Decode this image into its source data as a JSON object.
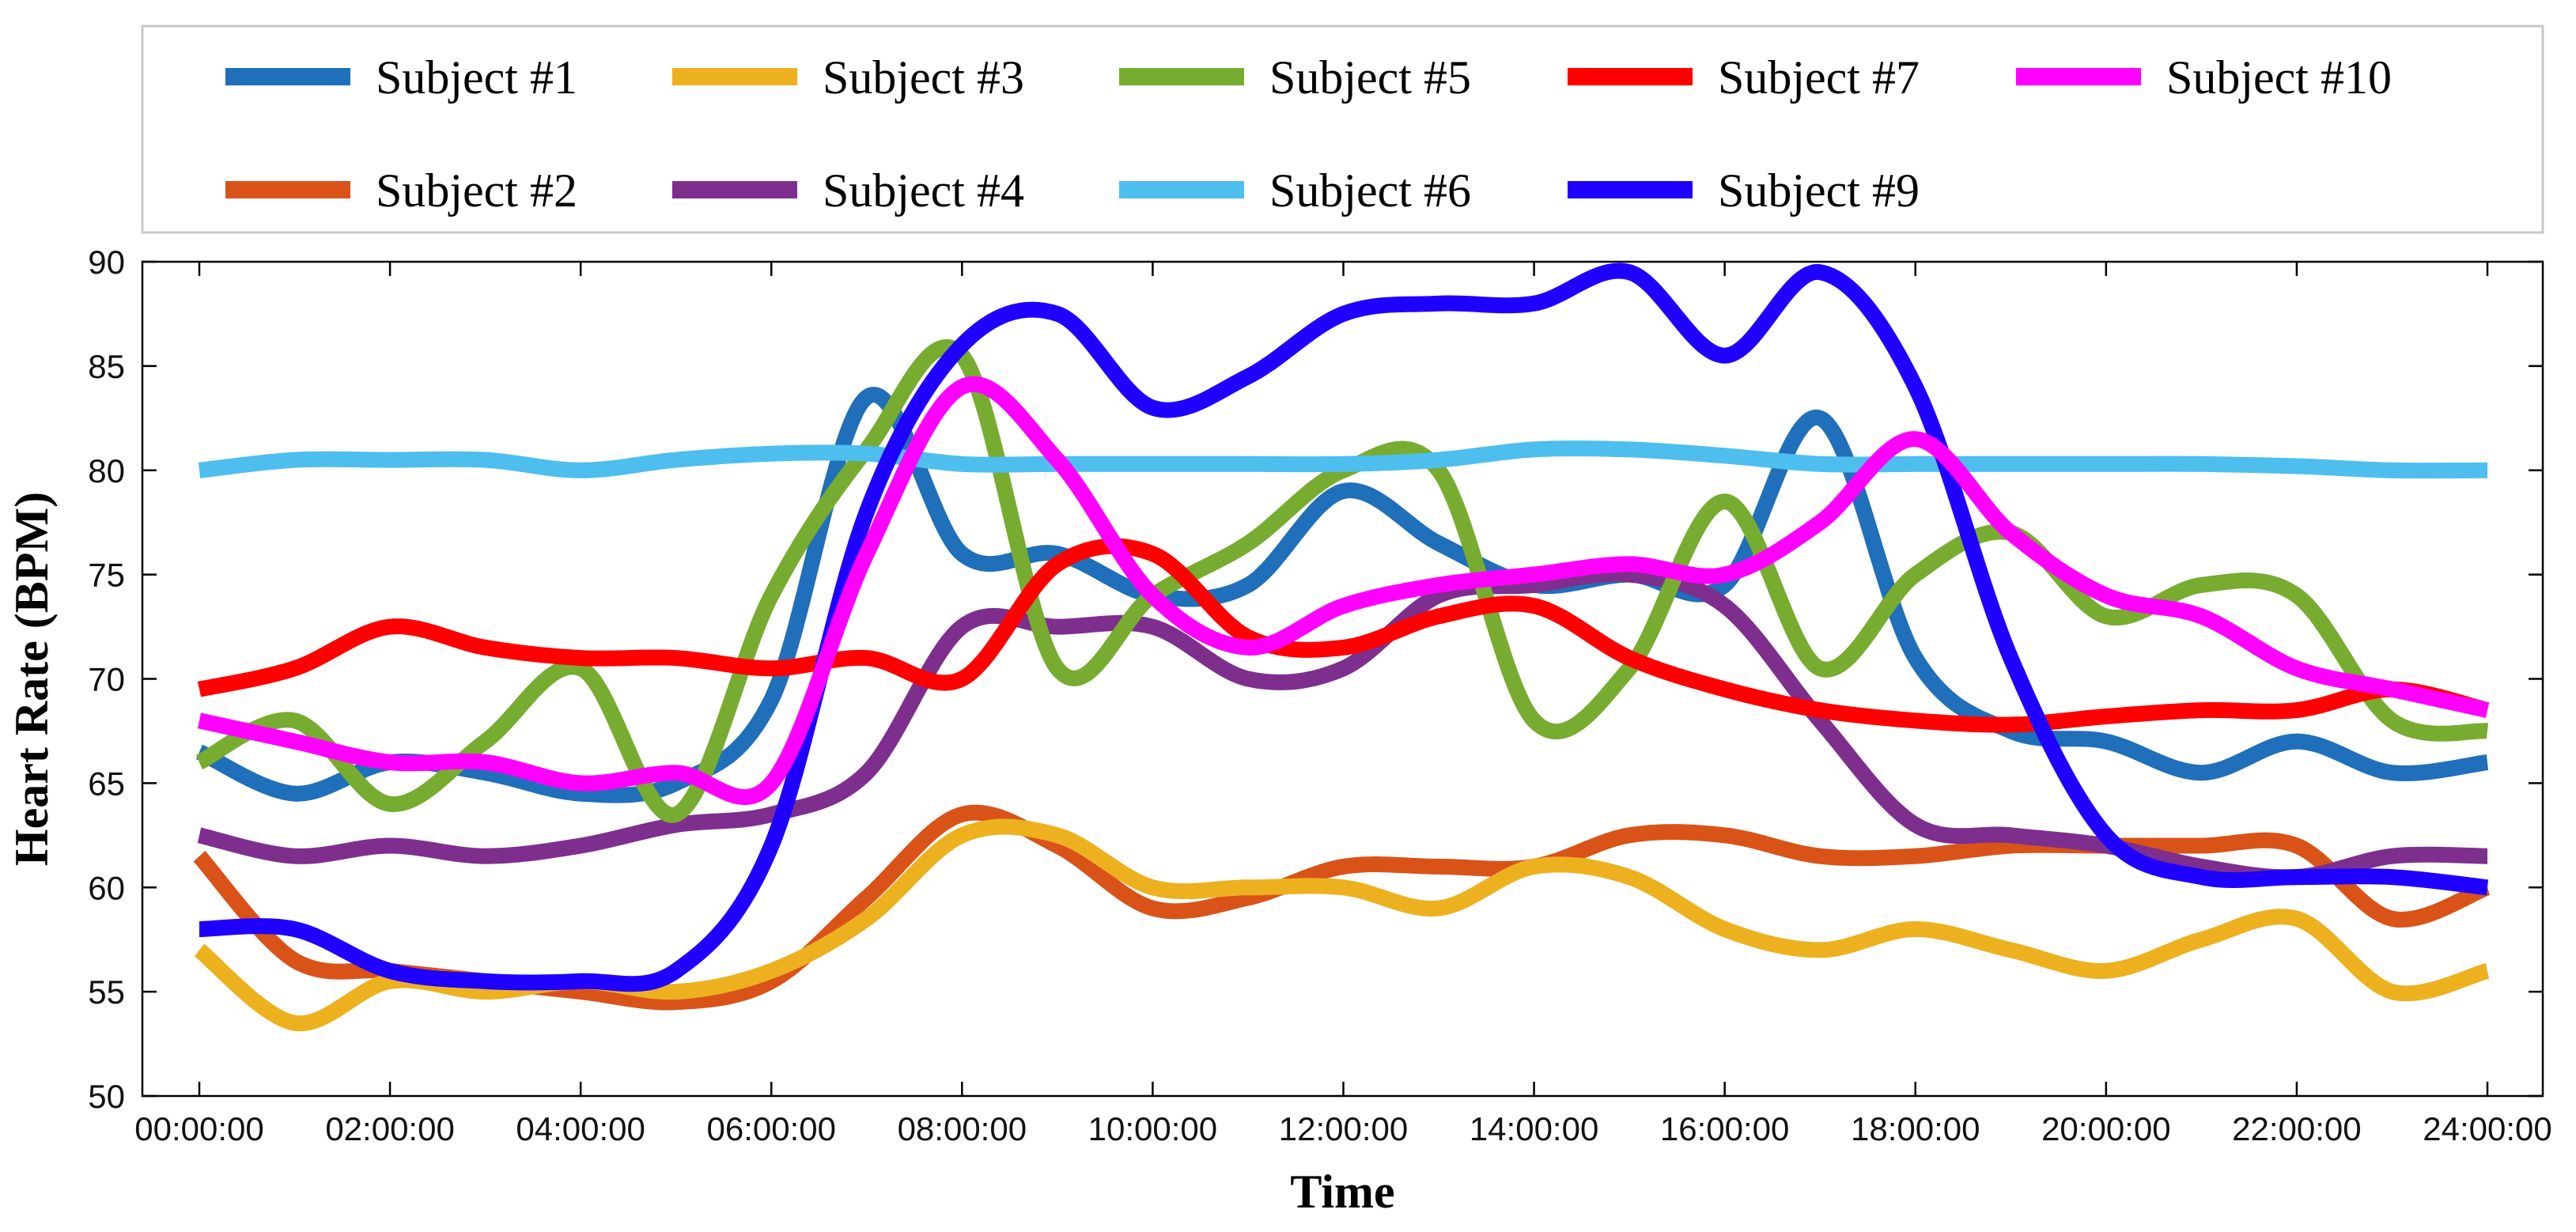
{
  "chart_data": {
    "type": "line",
    "xlabel": "Time",
    "ylabel": "Heart Rate (BPM)",
    "ylim": [
      50,
      90
    ],
    "xlim": [
      "00:00:00",
      "24:00:00"
    ],
    "x_tick_labels": [
      "00:00:00",
      "02:00:00",
      "04:00:00",
      "06:00:00",
      "08:00:00",
      "10:00:00",
      "12:00:00",
      "14:00:00",
      "16:00:00",
      "18:00:00",
      "20:00:00",
      "22:00:00",
      "24:00:00"
    ],
    "y_tick_labels": [
      "50",
      "55",
      "60",
      "65",
      "70",
      "75",
      "80",
      "85",
      "90"
    ],
    "grid": false,
    "legend_position": "top",
    "x": [
      "00:00:00",
      "01:00:00",
      "02:00:00",
      "03:00:00",
      "04:00:00",
      "05:00:00",
      "06:00:00",
      "07:00:00",
      "08:00:00",
      "09:00:00",
      "10:00:00",
      "11:00:00",
      "12:00:00",
      "13:00:00",
      "14:00:00",
      "15:00:00",
      "16:00:00",
      "17:00:00",
      "18:00:00",
      "19:00:00",
      "20:00:00",
      "21:00:00",
      "22:00:00",
      "23:00:00",
      "24:00:00"
    ],
    "series": [
      {
        "name": "Subject #1",
        "color": "#1F6FBA",
        "values": [
          66.5,
          64.5,
          66,
          65.5,
          64.5,
          65,
          69,
          83.5,
          76,
          76,
          74,
          74.5,
          79,
          76.5,
          74.5,
          75,
          74.5,
          82.5,
          71,
          67.5,
          67,
          65.5,
          67,
          65.5,
          66
        ]
      },
      {
        "name": "Subject #2",
        "color": "#D95319",
        "values": [
          61.5,
          56.5,
          56,
          55.5,
          55,
          54.5,
          55.5,
          59.5,
          63.5,
          62,
          59,
          59.5,
          61,
          61,
          61,
          62.5,
          62.5,
          61.5,
          61.5,
          62,
          62,
          62,
          62,
          58.5,
          60
        ]
      },
      {
        "name": "Subject #3",
        "color": "#EDB120",
        "values": [
          57,
          53.5,
          55.5,
          55,
          55.5,
          55,
          56,
          58.5,
          62.5,
          62.5,
          60,
          60,
          60,
          59,
          61,
          60.5,
          58,
          57,
          58,
          57,
          56,
          57.5,
          58.5,
          55,
          56
        ]
      },
      {
        "name": "Subject #4",
        "color": "#7E2F8E",
        "values": [
          62.5,
          61.5,
          62,
          61.5,
          62,
          63,
          63.5,
          65.5,
          72.5,
          72.5,
          72.5,
          70,
          70.5,
          74,
          74.5,
          75,
          73.5,
          68,
          63,
          62.5,
          62,
          61,
          60.5,
          61.5,
          61.5
        ]
      },
      {
        "name": "Subject #5",
        "color": "#77AC30",
        "values": [
          66,
          68,
          64,
          67,
          70.5,
          63.5,
          74,
          81,
          85.5,
          70.5,
          74,
          76.5,
          80,
          80,
          68,
          70.5,
          78.5,
          70.5,
          75,
          77,
          73,
          74.5,
          74,
          68,
          67.5
        ]
      },
      {
        "name": "Subject #6",
        "color": "#4DBEEE",
        "values": [
          80,
          80.5,
          80.5,
          80.5,
          80,
          80.5,
          80.8,
          80.8,
          80.3,
          80.3,
          80.3,
          80.3,
          80.3,
          80.5,
          81,
          81,
          80.7,
          80.3,
          80.3,
          80.3,
          80.3,
          80.3,
          80.2,
          80,
          80
        ]
      },
      {
        "name": "Subject #7",
        "color": "#FF0000",
        "values": [
          69.5,
          70.5,
          72.5,
          71.5,
          71,
          71,
          70.5,
          71,
          70,
          75.5,
          76,
          72,
          71.5,
          73,
          73.5,
          71,
          69.5,
          68.5,
          68,
          67.8,
          68.2,
          68.5,
          68.5,
          69.5,
          68.5
        ]
      },
      {
        "name": "Subject #9",
        "color": "#1F00FF",
        "values": [
          58,
          58,
          56,
          55.5,
          55.5,
          56,
          62,
          78,
          86,
          87.5,
          83,
          84.5,
          87.5,
          88,
          88,
          89.5,
          85.5,
          89.5,
          84,
          71,
          62.5,
          60.5,
          60.5,
          60.5,
          60
        ]
      },
      {
        "name": "Subject #10",
        "color": "#FF00FF",
        "values": [
          68,
          67,
          66,
          66,
          65,
          65.5,
          65,
          76,
          84,
          80.5,
          74,
          71.5,
          73.5,
          74.5,
          75,
          75.5,
          75,
          77.5,
          81.5,
          77,
          74,
          73,
          70.5,
          69.5,
          68.5
        ]
      }
    ]
  },
  "legend": {
    "items": [
      {
        "label": "Subject #1",
        "color": "#1F6FBA"
      },
      {
        "label": "Subject #3",
        "color": "#EDB120"
      },
      {
        "label": "Subject #5",
        "color": "#77AC30"
      },
      {
        "label": "Subject #7",
        "color": "#FF0000"
      },
      {
        "label": "Subject #10",
        "color": "#FF00FF"
      },
      {
        "label": "Subject #2",
        "color": "#D95319"
      },
      {
        "label": "Subject #4",
        "color": "#7E2F8E"
      },
      {
        "label": "Subject #6",
        "color": "#4DBEEE"
      },
      {
        "label": "Subject #9",
        "color": "#1F00FF"
      }
    ]
  }
}
